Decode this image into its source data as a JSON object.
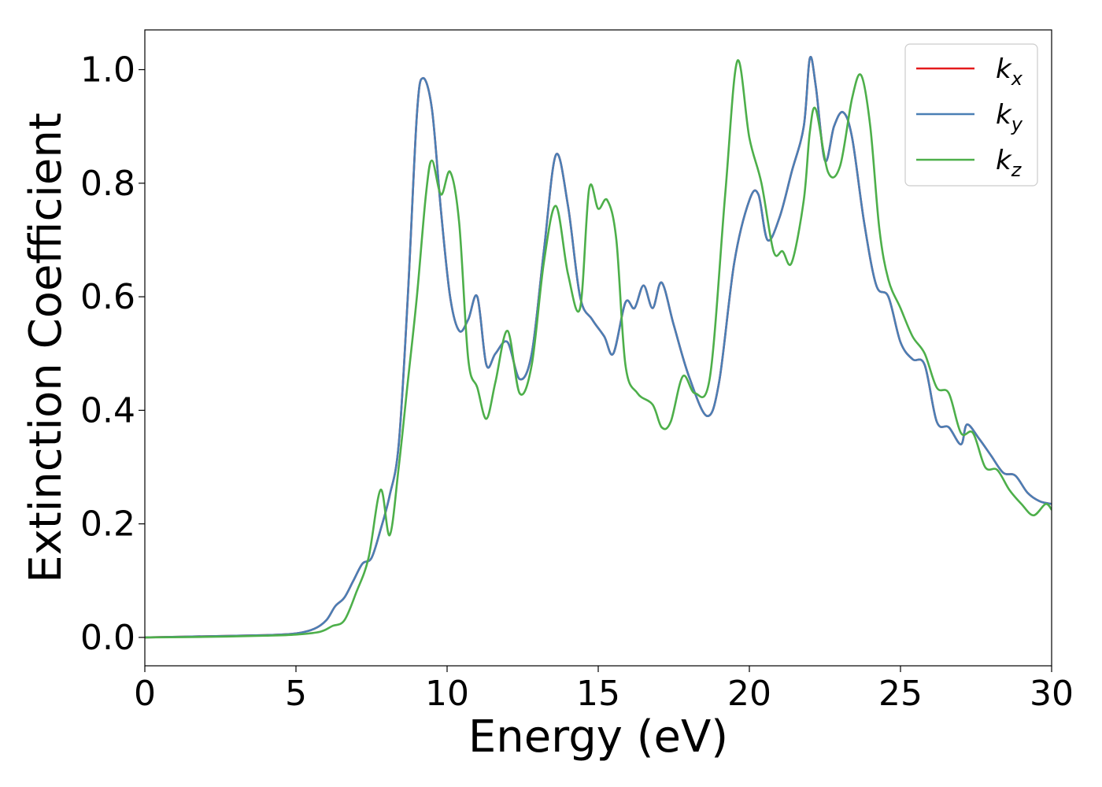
{
  "chart_data": {
    "type": "line",
    "title": "",
    "xlabel": "Energy (eV)",
    "ylabel": "Extinction Coefficient",
    "xlim": [
      0,
      30
    ],
    "ylim": [
      -0.05,
      1.07
    ],
    "xticks": [
      0,
      5,
      10,
      15,
      20,
      25,
      30
    ],
    "xtick_labels": [
      "0",
      "5",
      "10",
      "15",
      "20",
      "25",
      "30"
    ],
    "yticks": [
      0.0,
      0.2,
      0.4,
      0.6,
      0.8,
      1.0
    ],
    "ytick_labels": [
      "0.0",
      "0.2",
      "0.4",
      "0.6",
      "0.8",
      "1.0"
    ],
    "grid": false,
    "legend_position": "top-right",
    "series": [
      {
        "name": "kx",
        "label_base": "k",
        "label_sub": "x",
        "color": "#e41a1c",
        "x": [
          0,
          2,
          4,
          5,
          5.6,
          6,
          6.3,
          6.6,
          6.9,
          7.2,
          7.5,
          7.8,
          8.1,
          8.4,
          8.7,
          9.0,
          9.2,
          9.5,
          9.8,
          10.1,
          10.4,
          10.7,
          11.0,
          11.3,
          11.6,
          12.0,
          12.4,
          12.8,
          13.2,
          13.6,
          14.0,
          14.4,
          14.8,
          15.2,
          15.5,
          15.9,
          16.2,
          16.5,
          16.8,
          17.1,
          17.5,
          18.0,
          18.6,
          19.0,
          19.5,
          20.0,
          20.3,
          20.6,
          21.0,
          21.4,
          21.8,
          22.0,
          22.2,
          22.5,
          22.8,
          23.1,
          23.4,
          23.8,
          24.2,
          24.6,
          25.0,
          25.4,
          25.8,
          26.2,
          26.6,
          27.0,
          27.2,
          27.6,
          28.0,
          28.4,
          28.8,
          29.2,
          29.6,
          30.0
        ],
        "y": [
          0.0,
          0.002,
          0.004,
          0.007,
          0.015,
          0.03,
          0.055,
          0.07,
          0.1,
          0.13,
          0.14,
          0.19,
          0.25,
          0.34,
          0.6,
          0.92,
          0.985,
          0.93,
          0.75,
          0.6,
          0.54,
          0.56,
          0.6,
          0.48,
          0.5,
          0.52,
          0.455,
          0.5,
          0.68,
          0.85,
          0.76,
          0.6,
          0.56,
          0.53,
          0.5,
          0.59,
          0.58,
          0.62,
          0.58,
          0.625,
          0.55,
          0.46,
          0.39,
          0.45,
          0.66,
          0.77,
          0.78,
          0.7,
          0.74,
          0.82,
          0.9,
          1.02,
          0.97,
          0.84,
          0.9,
          0.925,
          0.88,
          0.73,
          0.62,
          0.6,
          0.52,
          0.49,
          0.48,
          0.38,
          0.37,
          0.34,
          0.375,
          0.35,
          0.32,
          0.29,
          0.285,
          0.255,
          0.24,
          0.235
        ]
      },
      {
        "name": "ky",
        "label_base": "k",
        "label_sub": "y",
        "color": "#4a7fb5",
        "x": [
          0,
          2,
          4,
          5,
          5.6,
          6,
          6.3,
          6.6,
          6.9,
          7.2,
          7.5,
          7.8,
          8.1,
          8.4,
          8.7,
          9.0,
          9.2,
          9.5,
          9.8,
          10.1,
          10.4,
          10.7,
          11.0,
          11.3,
          11.6,
          12.0,
          12.4,
          12.8,
          13.2,
          13.6,
          14.0,
          14.4,
          14.8,
          15.2,
          15.5,
          15.9,
          16.2,
          16.5,
          16.8,
          17.1,
          17.5,
          18.0,
          18.6,
          19.0,
          19.5,
          20.0,
          20.3,
          20.6,
          21.0,
          21.4,
          21.8,
          22.0,
          22.2,
          22.5,
          22.8,
          23.1,
          23.4,
          23.8,
          24.2,
          24.6,
          25.0,
          25.4,
          25.8,
          26.2,
          26.6,
          27.0,
          27.2,
          27.6,
          28.0,
          28.4,
          28.8,
          29.2,
          29.6,
          30.0
        ],
        "y": [
          0.0,
          0.002,
          0.004,
          0.007,
          0.015,
          0.03,
          0.055,
          0.07,
          0.1,
          0.13,
          0.14,
          0.19,
          0.25,
          0.34,
          0.6,
          0.92,
          0.985,
          0.93,
          0.75,
          0.6,
          0.54,
          0.56,
          0.6,
          0.48,
          0.5,
          0.52,
          0.455,
          0.5,
          0.68,
          0.85,
          0.76,
          0.6,
          0.56,
          0.53,
          0.5,
          0.59,
          0.58,
          0.62,
          0.58,
          0.625,
          0.55,
          0.46,
          0.39,
          0.45,
          0.66,
          0.77,
          0.78,
          0.7,
          0.74,
          0.82,
          0.9,
          1.02,
          0.97,
          0.84,
          0.9,
          0.925,
          0.88,
          0.73,
          0.62,
          0.6,
          0.52,
          0.49,
          0.48,
          0.38,
          0.37,
          0.34,
          0.375,
          0.35,
          0.32,
          0.29,
          0.285,
          0.255,
          0.24,
          0.235
        ]
      },
      {
        "name": "kz",
        "label_base": "k",
        "label_sub": "z",
        "color": "#4daf4a",
        "x": [
          0,
          2,
          4,
          5,
          5.8,
          6.2,
          6.6,
          7.0,
          7.4,
          7.8,
          8.1,
          8.4,
          8.7,
          9.0,
          9.3,
          9.5,
          9.8,
          10.1,
          10.4,
          10.7,
          11.0,
          11.3,
          11.6,
          12.0,
          12.4,
          12.8,
          13.2,
          13.6,
          14.0,
          14.4,
          14.7,
          15.0,
          15.3,
          15.6,
          15.9,
          16.3,
          16.8,
          17.1,
          17.4,
          17.8,
          18.2,
          18.7,
          19.2,
          19.6,
          20.0,
          20.4,
          20.8,
          21.1,
          21.4,
          21.8,
          22.0,
          22.2,
          22.6,
          23.0,
          23.4,
          23.7,
          24.0,
          24.3,
          24.6,
          25.0,
          25.4,
          25.8,
          26.2,
          26.6,
          27.0,
          27.4,
          27.8,
          28.2,
          28.6,
          29.0,
          29.4,
          29.8,
          30.0
        ],
        "y": [
          0.0,
          0.001,
          0.003,
          0.005,
          0.01,
          0.02,
          0.03,
          0.08,
          0.14,
          0.26,
          0.18,
          0.3,
          0.45,
          0.6,
          0.78,
          0.84,
          0.78,
          0.82,
          0.73,
          0.49,
          0.44,
          0.385,
          0.45,
          0.54,
          0.43,
          0.48,
          0.66,
          0.76,
          0.64,
          0.58,
          0.79,
          0.755,
          0.77,
          0.7,
          0.48,
          0.43,
          0.41,
          0.37,
          0.38,
          0.46,
          0.43,
          0.46,
          0.78,
          1.015,
          0.88,
          0.8,
          0.68,
          0.68,
          0.66,
          0.77,
          0.89,
          0.93,
          0.82,
          0.83,
          0.95,
          0.99,
          0.9,
          0.72,
          0.63,
          0.58,
          0.53,
          0.5,
          0.44,
          0.43,
          0.36,
          0.36,
          0.3,
          0.295,
          0.26,
          0.235,
          0.215,
          0.235,
          0.225
        ]
      }
    ]
  }
}
